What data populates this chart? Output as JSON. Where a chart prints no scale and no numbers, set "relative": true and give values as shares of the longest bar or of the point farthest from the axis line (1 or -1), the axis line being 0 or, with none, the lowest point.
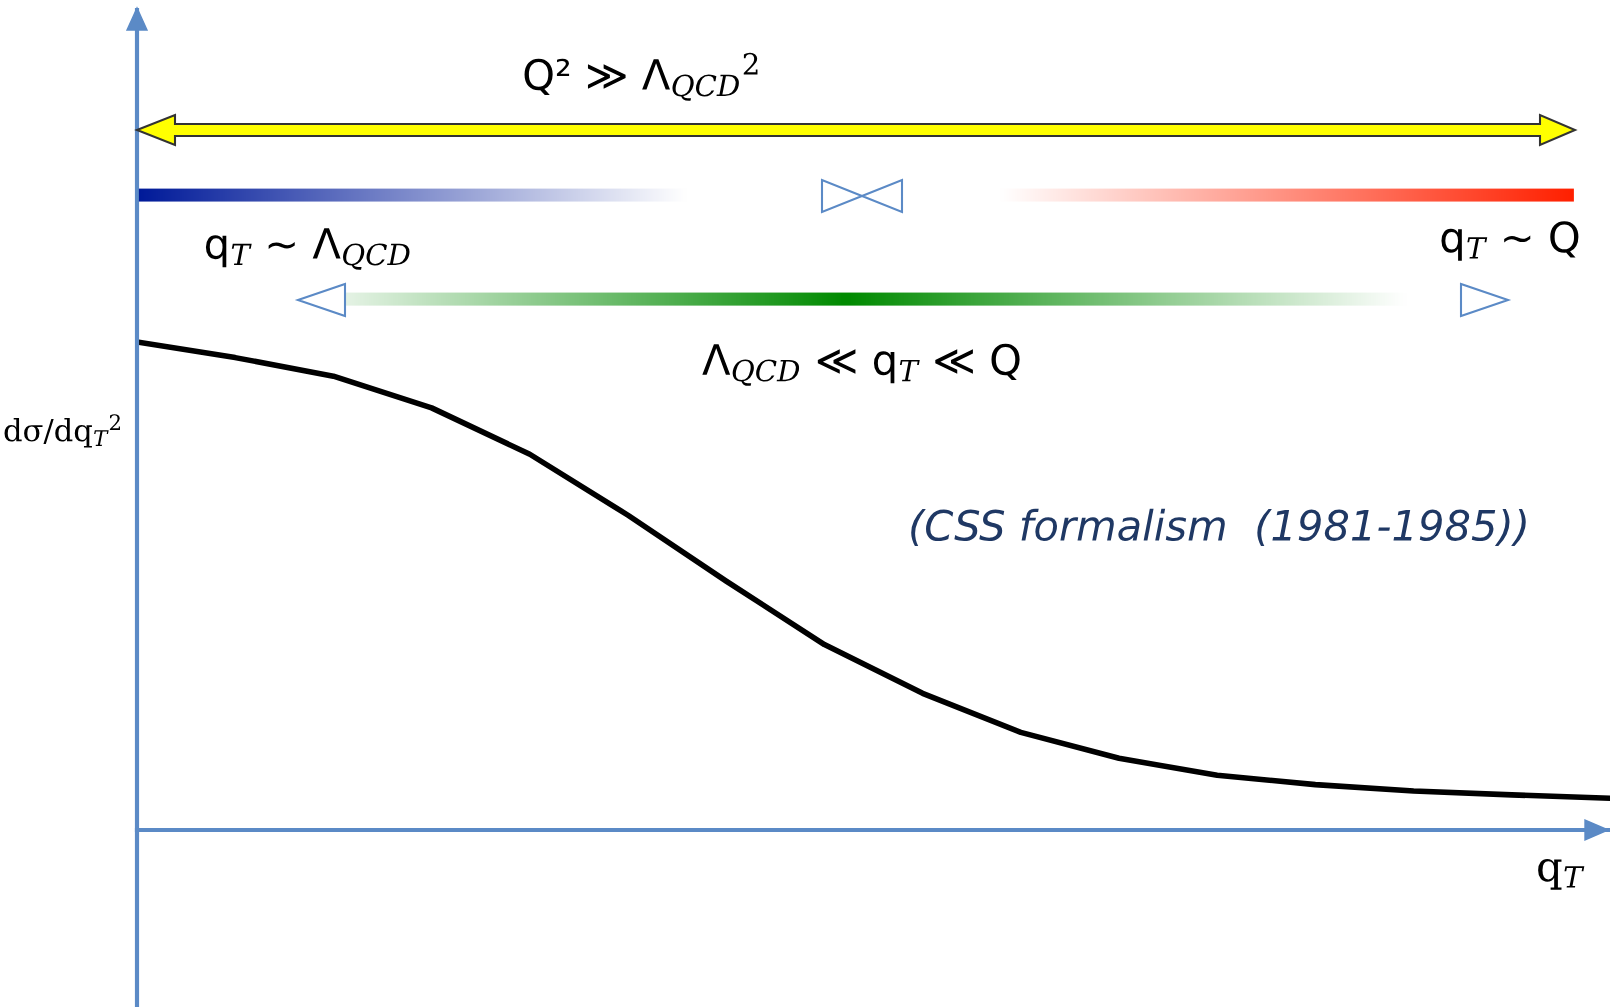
{
  "chart_data": {
    "type": "line",
    "relative": true,
    "tick_labels": false,
    "line_style": "solid",
    "xlabel": "q$_{T}$",
    "ylabel": "dσ/dq$_{T}$$^{2}$",
    "categories": [
      null,
      null,
      null,
      null,
      null,
      null,
      null,
      null,
      null,
      null,
      null,
      null,
      null,
      null,
      null,
      null
    ],
    "series": [
      {
        "color": "#000000",
        "values": [
          1.0,
          0.968,
          0.93,
          0.865,
          0.77,
          0.645,
          0.51,
          0.38,
          0.28,
          0.2,
          0.147,
          0.112,
          0.093,
          0.08,
          0.072,
          0.065
        ]
      }
    ],
    "annotations": [
      "Q² ≫ Λ$_{QCD}$$^{2}$",
      "q$_{T}$ ∼ Λ$_{QCD}$",
      "q$_{T}$ ∼ Q",
      "Λ$_{QCD}$ ≪ q$_{T}$ ≪ Q",
      "(CSS formalism  (1981-1985))"
    ]
  }
}
